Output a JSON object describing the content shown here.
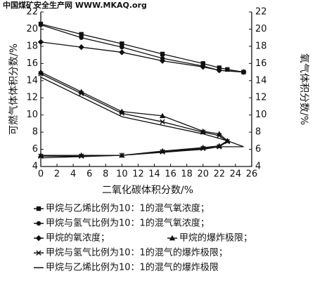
{
  "chart_data": {
    "type": "line",
    "watermark": "中国煤矿安全生产网 WWW.MKAQ.org",
    "xlabel": "二氧化碳体积分数/%",
    "ylabel": "可燃气体体积分数/%",
    "y2label": "氧气体积分数/%",
    "xlim": [
      0,
      26
    ],
    "xticks": [
      0,
      2,
      4,
      6,
      8,
      10,
      12,
      14,
      16,
      18,
      20,
      22,
      24,
      26
    ],
    "ylim": [
      4,
      22
    ],
    "yticks": [
      4,
      6,
      8,
      10,
      12,
      14,
      16,
      18,
      20,
      22
    ],
    "y2lim": [
      4,
      22
    ],
    "y2ticks": [
      4,
      6,
      8,
      10,
      12,
      14,
      16,
      18,
      20,
      22
    ],
    "series": [
      {
        "name": "甲烷与乙烯比例为10：1的混气氧浓度；",
        "color": "#111",
        "marker": "square",
        "axis": "y2",
        "x": [
          0,
          5,
          10,
          15,
          20,
          22,
          23,
          25
        ],
        "values": [
          20.6,
          19.4,
          18.3,
          17.1,
          16.0,
          15.5,
          15.3,
          15.0
        ]
      },
      {
        "name": "甲烷与氢气比例为10：1的混气氧浓度；",
        "color": "#111",
        "marker": "circle",
        "axis": "y2",
        "x": [
          0,
          5,
          10,
          15,
          20,
          22,
          25
        ],
        "values": [
          20.5,
          19.0,
          17.9,
          16.6,
          15.7,
          15.2,
          15.0
        ]
      },
      {
        "name": "甲烷的氧浓度；",
        "color": "#111",
        "marker": "diamond",
        "axis": "y2",
        "x": [
          0,
          5,
          10,
          15,
          20,
          22,
          25
        ],
        "values": [
          18.5,
          17.9,
          17.3,
          16.3,
          15.6,
          15.2,
          15.0
        ]
      },
      {
        "name": "甲烷的爆炸极限；",
        "color": "#111",
        "marker": "triangle",
        "x": [
          0,
          5,
          10,
          15,
          20,
          22,
          23,
          22,
          20,
          15,
          10,
          5,
          0
        ],
        "values": [
          15,
          12.7,
          10.4,
          9.9,
          8.1,
          7.8,
          7.0,
          6.4,
          6.2,
          5.8,
          5.3,
          5.3,
          5.3
        ]
      },
      {
        "name": "甲烷与氢气比例为10：1的混气的爆炸极限；",
        "color": "#111",
        "marker": "cross",
        "x": [
          0,
          5,
          10,
          15,
          20,
          22,
          23,
          22,
          20,
          15,
          10,
          5,
          0
        ],
        "values": [
          14.8,
          12.5,
          10.2,
          9.2,
          8.0,
          7.6,
          6.9,
          6.3,
          6.1,
          5.7,
          5.3,
          5.2,
          5.2
        ]
      },
      {
        "name": "甲烷与乙烯比例为10：1的混气的爆炸极限",
        "color": "#111",
        "marker": "none",
        "x": [
          0,
          10,
          20,
          23,
          25,
          22,
          20,
          10,
          0
        ],
        "values": [
          14.4,
          9.8,
          7.8,
          7.0,
          6.3,
          6.3,
          6.0,
          5.3,
          5.0
        ]
      }
    ]
  }
}
